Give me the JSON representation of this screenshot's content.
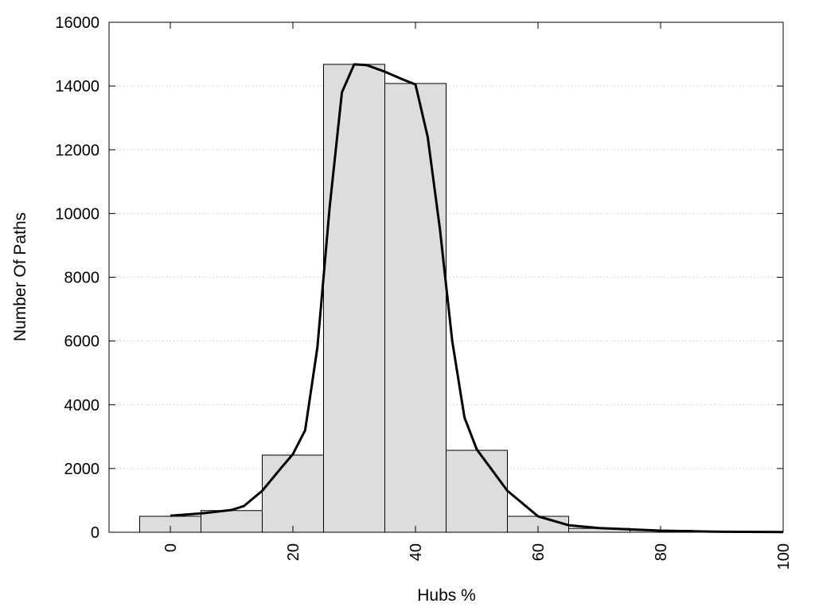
{
  "chart_data": {
    "type": "bar",
    "title": "",
    "xlabel": "Hubs %",
    "ylabel": "Number Of Paths",
    "xlim": [
      -10,
      100
    ],
    "ylim": [
      0,
      16000
    ],
    "x_ticks": [
      0,
      20,
      40,
      60,
      80,
      100
    ],
    "y_ticks": [
      0,
      2000,
      4000,
      6000,
      8000,
      10000,
      12000,
      14000,
      16000
    ],
    "grid": "horizontal-dotted",
    "bin_width": 10,
    "bars": [
      {
        "x": 0,
        "value": 500
      },
      {
        "x": 10,
        "value": 680
      },
      {
        "x": 20,
        "value": 2420
      },
      {
        "x": 30,
        "value": 14680
      },
      {
        "x": 40,
        "value": 14080
      },
      {
        "x": 50,
        "value": 2570
      },
      {
        "x": 60,
        "value": 500
      },
      {
        "x": 70,
        "value": 120
      },
      {
        "x": 80,
        "value": 60
      },
      {
        "x": 90,
        "value": 20
      },
      {
        "x": 100,
        "value": 10
      }
    ],
    "series": [
      {
        "type": "line",
        "x": [
          0,
          5,
          10,
          12,
          15,
          18,
          20,
          22,
          24,
          26,
          28,
          30,
          32,
          35,
          38,
          40,
          42,
          44,
          46,
          48,
          50,
          55,
          60,
          65,
          70,
          80,
          90,
          100
        ],
        "values": [
          520,
          590,
          700,
          820,
          1300,
          2000,
          2450,
          3200,
          5800,
          10200,
          13800,
          14680,
          14660,
          14450,
          14200,
          14050,
          12400,
          9500,
          6000,
          3600,
          2600,
          1300,
          500,
          220,
          130,
          50,
          15,
          5
        ]
      }
    ],
    "colors": {
      "bar_fill": "#dddddd",
      "bar_stroke": "#000000",
      "line": "#000000",
      "grid": "#c8c8c8"
    }
  }
}
